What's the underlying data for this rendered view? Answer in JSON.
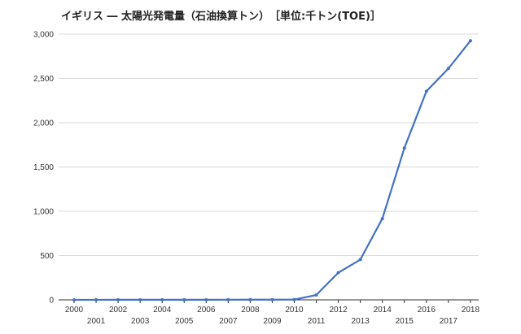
{
  "chart_data": {
    "type": "line",
    "title": "イギリス ― 太陽光発電量（石油換算トン）　［単位:千トン(TOE)］",
    "xlabel": "",
    "ylabel": "",
    "x": [
      "2000",
      "2001",
      "2002",
      "2003",
      "2004",
      "2005",
      "2006",
      "2007",
      "2008",
      "2009",
      "2010",
      "2011",
      "2012",
      "2013",
      "2014",
      "2015",
      "2016",
      "2017",
      "2018"
    ],
    "series": [
      {
        "values": [
          0.5,
          0.7,
          0.8,
          1,
          1.1,
          1.3,
          1.5,
          1.8,
          2,
          2.5,
          3.5,
          55,
          307,
          455,
          918,
          1715,
          2355,
          2612,
          2925
        ]
      }
    ],
    "ylim": [
      0,
      3000
    ],
    "yticks": [
      0,
      500,
      1000,
      1500,
      2000,
      2500,
      3000
    ],
    "ytick_labels": [
      "0",
      "500",
      "1,000",
      "1,500",
      "2,000",
      "2,500",
      "3,000"
    ],
    "grid": true,
    "legend": "none",
    "colors": {
      "series": "#4472c4",
      "grid": "#d9d9d9",
      "axis": "#333333"
    }
  }
}
